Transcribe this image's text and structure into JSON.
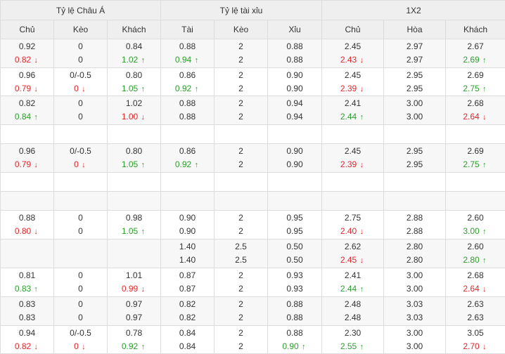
{
  "header": {
    "groups": [
      "Tỷ lệ Châu Á",
      "Tỷ lệ tài xỉu",
      "1X2"
    ],
    "columns": [
      "Chủ",
      "Kèo",
      "Khách",
      "Tài",
      "Kèo",
      "Xỉu",
      "Chủ",
      "Hòa",
      "Khách"
    ]
  },
  "colors": {
    "down": "#e3262a",
    "up": "#2c9e2c",
    "header_bg": "#efefef",
    "zebra_bg": "#f7f7f7"
  },
  "rows": [
    {
      "h": 41,
      "bg": "zebra",
      "cells": [
        [
          {
            "v": "0.92"
          },
          {
            "v": "0.82",
            "d": "down"
          }
        ],
        [
          {
            "v": "0"
          },
          {
            "v": "0"
          }
        ],
        [
          {
            "v": "0.84"
          },
          {
            "v": "1.02",
            "d": "up"
          }
        ],
        [
          {
            "v": "0.88"
          },
          {
            "v": "0.94",
            "d": "up"
          }
        ],
        [
          {
            "v": "2"
          },
          {
            "v": "2"
          }
        ],
        [
          {
            "v": "0.88"
          },
          {
            "v": "0.88"
          }
        ],
        [
          {
            "v": "2.45"
          },
          {
            "v": "2.43",
            "d": "down"
          }
        ],
        [
          {
            "v": "2.97"
          },
          {
            "v": "2.97"
          }
        ],
        [
          {
            "v": "2.67"
          },
          {
            "v": "2.69",
            "d": "up"
          }
        ]
      ]
    },
    {
      "h": 40,
      "bg": "white",
      "cells": [
        [
          {
            "v": "0.96"
          },
          {
            "v": "0.79",
            "d": "down"
          }
        ],
        [
          {
            "v": "0/-0.5"
          },
          {
            "v": "0",
            "d": "down"
          }
        ],
        [
          {
            "v": "0.80"
          },
          {
            "v": "1.05",
            "d": "up"
          }
        ],
        [
          {
            "v": "0.86"
          },
          {
            "v": "0.92",
            "d": "up"
          }
        ],
        [
          {
            "v": "2"
          },
          {
            "v": "2"
          }
        ],
        [
          {
            "v": "0.90"
          },
          {
            "v": "0.90"
          }
        ],
        [
          {
            "v": "2.45"
          },
          {
            "v": "2.39",
            "d": "down"
          }
        ],
        [
          {
            "v": "2.95"
          },
          {
            "v": "2.95"
          }
        ],
        [
          {
            "v": "2.69"
          },
          {
            "v": "2.75",
            "d": "up"
          }
        ]
      ]
    },
    {
      "h": 41,
      "bg": "zebra",
      "cells": [
        [
          {
            "v": "0.82"
          },
          {
            "v": "0.84",
            "d": "up"
          }
        ],
        [
          {
            "v": "0"
          },
          {
            "v": "0"
          }
        ],
        [
          {
            "v": "1.02"
          },
          {
            "v": "1.00",
            "d": "down"
          }
        ],
        [
          {
            "v": "0.88"
          },
          {
            "v": "0.88"
          }
        ],
        [
          {
            "v": "2"
          },
          {
            "v": "2"
          }
        ],
        [
          {
            "v": "0.94"
          },
          {
            "v": "0.94"
          }
        ],
        [
          {
            "v": "2.41"
          },
          {
            "v": "2.44",
            "d": "up"
          }
        ],
        [
          {
            "v": "3.00"
          },
          {
            "v": "3.00"
          }
        ],
        [
          {
            "v": "2.68"
          },
          {
            "v": "2.64",
            "d": "down"
          }
        ]
      ]
    },
    {
      "h": 27,
      "bg": "white",
      "empty": true
    },
    {
      "h": 41,
      "bg": "zebra",
      "cells": [
        [
          {
            "v": "0.96"
          },
          {
            "v": "0.79",
            "d": "down"
          }
        ],
        [
          {
            "v": "0/-0.5"
          },
          {
            "v": "0",
            "d": "down"
          }
        ],
        [
          {
            "v": "0.80"
          },
          {
            "v": "1.05",
            "d": "up"
          }
        ],
        [
          {
            "v": "0.86"
          },
          {
            "v": "0.92",
            "d": "up"
          }
        ],
        [
          {
            "v": "2"
          },
          {
            "v": "2"
          }
        ],
        [
          {
            "v": "0.90"
          },
          {
            "v": "0.90"
          }
        ],
        [
          {
            "v": "2.45"
          },
          {
            "v": "2.39",
            "d": "down"
          }
        ],
        [
          {
            "v": "2.95"
          },
          {
            "v": "2.95"
          }
        ],
        [
          {
            "v": "2.69"
          },
          {
            "v": "2.75",
            "d": "up"
          }
        ]
      ]
    },
    {
      "h": 27,
      "bg": "white",
      "empty": true
    },
    {
      "h": 27,
      "bg": "zebra",
      "empty": true
    },
    {
      "h": 41,
      "bg": "white",
      "cells": [
        [
          {
            "v": "0.88"
          },
          {
            "v": "0.80",
            "d": "down"
          }
        ],
        [
          {
            "v": "0"
          },
          {
            "v": "0"
          }
        ],
        [
          {
            "v": "0.98"
          },
          {
            "v": "1.05",
            "d": "up"
          }
        ],
        [
          {
            "v": "0.90"
          },
          {
            "v": "0.90"
          }
        ],
        [
          {
            "v": "2"
          },
          {
            "v": "2"
          }
        ],
        [
          {
            "v": "0.95"
          },
          {
            "v": "0.95"
          }
        ],
        [
          {
            "v": "2.75"
          },
          {
            "v": "2.40",
            "d": "down"
          }
        ],
        [
          {
            "v": "2.88"
          },
          {
            "v": "2.88"
          }
        ],
        [
          {
            "v": "2.60"
          },
          {
            "v": "3.00",
            "d": "up"
          }
        ]
      ]
    },
    {
      "h": 41,
      "bg": "zebra",
      "cells": [
        [],
        [],
        [],
        [
          {
            "v": "1.40"
          },
          {
            "v": "1.40"
          }
        ],
        [
          {
            "v": "2.5"
          },
          {
            "v": "2.5"
          }
        ],
        [
          {
            "v": "0.50"
          },
          {
            "v": "0.50"
          }
        ],
        [
          {
            "v": "2.62"
          },
          {
            "v": "2.45",
            "d": "down"
          }
        ],
        [
          {
            "v": "2.80"
          },
          {
            "v": "2.80"
          }
        ],
        [
          {
            "v": "2.60"
          },
          {
            "v": "2.80",
            "d": "up"
          }
        ]
      ]
    },
    {
      "h": 41,
      "bg": "white",
      "cells": [
        [
          {
            "v": "0.81"
          },
          {
            "v": "0.83",
            "d": "up"
          }
        ],
        [
          {
            "v": "0"
          },
          {
            "v": "0"
          }
        ],
        [
          {
            "v": "1.01"
          },
          {
            "v": "0.99",
            "d": "down"
          }
        ],
        [
          {
            "v": "0.87"
          },
          {
            "v": "0.87"
          }
        ],
        [
          {
            "v": "2"
          },
          {
            "v": "2"
          }
        ],
        [
          {
            "v": "0.93"
          },
          {
            "v": "0.93"
          }
        ],
        [
          {
            "v": "2.41"
          },
          {
            "v": "2.44",
            "d": "up"
          }
        ],
        [
          {
            "v": "3.00"
          },
          {
            "v": "3.00"
          }
        ],
        [
          {
            "v": "2.68"
          },
          {
            "v": "2.64",
            "d": "down"
          }
        ]
      ]
    },
    {
      "h": 41,
      "bg": "zebra",
      "cells": [
        [
          {
            "v": "0.83"
          },
          {
            "v": "0.83"
          }
        ],
        [
          {
            "v": "0"
          },
          {
            "v": "0"
          }
        ],
        [
          {
            "v": "0.97"
          },
          {
            "v": "0.97"
          }
        ],
        [
          {
            "v": "0.82"
          },
          {
            "v": "0.82"
          }
        ],
        [
          {
            "v": "2"
          },
          {
            "v": "2"
          }
        ],
        [
          {
            "v": "0.88"
          },
          {
            "v": "0.88"
          }
        ],
        [
          {
            "v": "2.48"
          },
          {
            "v": "2.48"
          }
        ],
        [
          {
            "v": "3.03"
          },
          {
            "v": "3.03"
          }
        ],
        [
          {
            "v": "2.63"
          },
          {
            "v": "2.63"
          }
        ]
      ]
    },
    {
      "h": 40,
      "bg": "white",
      "cells": [
        [
          {
            "v": "0.94"
          },
          {
            "v": "0.82",
            "d": "down"
          }
        ],
        [
          {
            "v": "0/-0.5"
          },
          {
            "v": "0",
            "d": "down"
          }
        ],
        [
          {
            "v": "0.78"
          },
          {
            "v": "0.92",
            "d": "up"
          }
        ],
        [
          {
            "v": "0.84"
          },
          {
            "v": "0.84"
          }
        ],
        [
          {
            "v": "2"
          },
          {
            "v": "2"
          }
        ],
        [
          {
            "v": "0.88"
          },
          {
            "v": "0.90",
            "d": "up"
          }
        ],
        [
          {
            "v": "2.30"
          },
          {
            "v": "2.55",
            "d": "up"
          }
        ],
        [
          {
            "v": "3.00"
          },
          {
            "v": "3.00"
          }
        ],
        [
          {
            "v": "3.05"
          },
          {
            "v": "2.70",
            "d": "down"
          }
        ]
      ]
    }
  ]
}
